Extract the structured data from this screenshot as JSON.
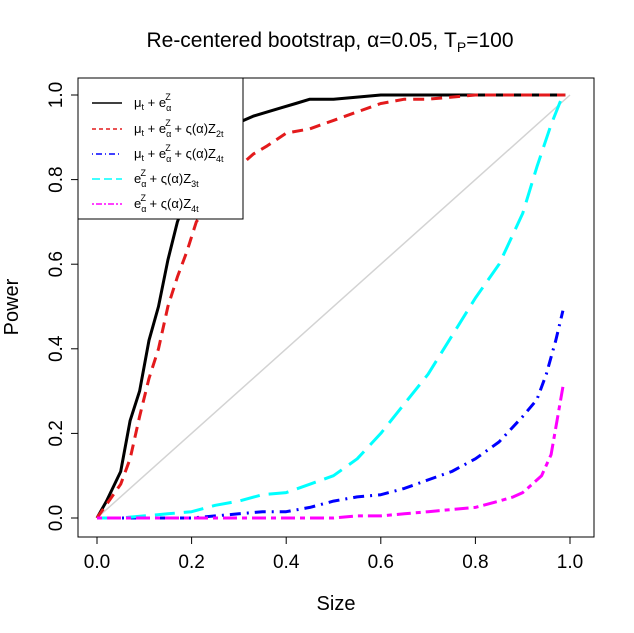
{
  "chart_data": {
    "type": "line",
    "title": "Re-centered bootstrap, α=0.05, T_P=100",
    "title_parts": {
      "pre": "Re-centered bootstrap, ",
      "alpha": "α",
      "mid": "=0.05, T",
      "sub": "P",
      "post": "=100"
    },
    "xlabel": "Size",
    "ylabel": "Power",
    "xlim": [
      0,
      1
    ],
    "ylim": [
      0,
      1
    ],
    "x_ticks": [
      0.0,
      0.2,
      0.4,
      0.6,
      0.8,
      1.0
    ],
    "x_tick_labels": [
      "0.0",
      "0.2",
      "0.4",
      "0.6",
      "0.8",
      "1.0"
    ],
    "y_ticks": [
      0.0,
      0.2,
      0.4,
      0.6,
      0.8,
      1.0
    ],
    "y_tick_labels": [
      "0.0",
      "0.2",
      "0.4",
      "0.6",
      "0.8",
      "1.0"
    ],
    "legend_position": "top-left",
    "reference_line": {
      "name": "45-degree line",
      "x": [
        0,
        1
      ],
      "y": [
        0,
        1
      ],
      "color": "#d3d3d3"
    },
    "series": [
      {
        "name": "μt + eαZ",
        "color": "#000000",
        "dash": "solid",
        "x": [
          0.0,
          0.02,
          0.05,
          0.07,
          0.09,
          0.11,
          0.13,
          0.15,
          0.17,
          0.19,
          0.21,
          0.23,
          0.25,
          0.27,
          0.29,
          0.31,
          0.33,
          0.36,
          0.39,
          0.42,
          0.45,
          0.5,
          0.55,
          0.6,
          0.7,
          0.8,
          0.9,
          0.99
        ],
        "y": [
          0.0,
          0.04,
          0.11,
          0.23,
          0.3,
          0.42,
          0.5,
          0.61,
          0.7,
          0.76,
          0.8,
          0.84,
          0.87,
          0.91,
          0.93,
          0.94,
          0.95,
          0.96,
          0.97,
          0.98,
          0.99,
          0.99,
          0.995,
          1.0,
          1.0,
          1.0,
          1.0,
          1.0
        ]
      },
      {
        "name": "μt + eαZ + ς(α)Z2t",
        "color": "#e31a1c",
        "dash": "dashed",
        "x": [
          0.0,
          0.05,
          0.07,
          0.09,
          0.11,
          0.13,
          0.15,
          0.17,
          0.19,
          0.21,
          0.23,
          0.25,
          0.27,
          0.29,
          0.31,
          0.33,
          0.36,
          0.4,
          0.45,
          0.5,
          0.55,
          0.6,
          0.65,
          0.7,
          0.8,
          0.9,
          0.99
        ],
        "y": [
          0.0,
          0.08,
          0.14,
          0.24,
          0.33,
          0.4,
          0.5,
          0.57,
          0.63,
          0.7,
          0.73,
          0.77,
          0.8,
          0.83,
          0.84,
          0.86,
          0.88,
          0.91,
          0.92,
          0.94,
          0.96,
          0.98,
          0.99,
          0.99,
          1.0,
          1.0,
          1.0
        ]
      },
      {
        "name": "μt + eαZ + ς(α)Z4t",
        "color": "#0000ff",
        "dash": "dotdash",
        "x": [
          0.0,
          0.1,
          0.2,
          0.25,
          0.3,
          0.35,
          0.4,
          0.45,
          0.5,
          0.55,
          0.6,
          0.65,
          0.7,
          0.75,
          0.8,
          0.85,
          0.9,
          0.93,
          0.95,
          0.97,
          0.985
        ],
        "y": [
          0.0,
          0.0,
          0.0,
          0.005,
          0.01,
          0.015,
          0.015,
          0.025,
          0.04,
          0.05,
          0.055,
          0.07,
          0.09,
          0.11,
          0.14,
          0.18,
          0.24,
          0.28,
          0.34,
          0.42,
          0.49
        ]
      },
      {
        "name": "eαZ + ς(α)Z3t",
        "color": "#00ffff",
        "dash": "longdash",
        "x": [
          0.0,
          0.05,
          0.1,
          0.15,
          0.2,
          0.25,
          0.3,
          0.35,
          0.4,
          0.45,
          0.5,
          0.55,
          0.6,
          0.65,
          0.7,
          0.75,
          0.8,
          0.85,
          0.9,
          0.93,
          0.96,
          0.985
        ],
        "y": [
          0.0,
          0.0,
          0.005,
          0.01,
          0.015,
          0.03,
          0.04,
          0.055,
          0.06,
          0.08,
          0.1,
          0.14,
          0.2,
          0.27,
          0.34,
          0.43,
          0.52,
          0.6,
          0.72,
          0.83,
          0.93,
          1.0
        ]
      },
      {
        "name": "eαZ + ς(α)Z4t",
        "color": "#ff00ff",
        "dash": "twodash",
        "x": [
          0.0,
          0.1,
          0.2,
          0.3,
          0.4,
          0.5,
          0.55,
          0.6,
          0.65,
          0.7,
          0.75,
          0.8,
          0.85,
          0.88,
          0.9,
          0.92,
          0.94,
          0.96,
          0.985
        ],
        "y": [
          0.0,
          0.0,
          0.0,
          0.0,
          0.0,
          0.0,
          0.005,
          0.005,
          0.01,
          0.015,
          0.02,
          0.025,
          0.04,
          0.05,
          0.06,
          0.08,
          0.1,
          0.15,
          0.31
        ]
      }
    ]
  }
}
